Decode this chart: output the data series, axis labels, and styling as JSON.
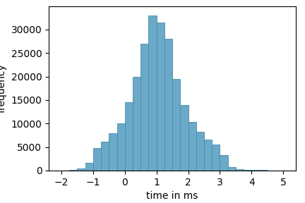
{
  "xlabel": "time in ms",
  "ylabel": "frequency",
  "bar_color": "#6aaac8",
  "bar_edgecolor": "#4a8aaa",
  "bin_edges": [
    -1.75,
    -1.5,
    -1.25,
    -1.0,
    -0.75,
    -0.5,
    -0.25,
    0.0,
    0.25,
    0.5,
    0.75,
    1.0,
    1.25,
    1.5,
    1.75,
    2.0,
    2.25,
    2.5,
    2.75,
    3.0,
    3.25,
    3.5,
    3.75,
    4.0,
    4.25,
    4.5,
    4.75,
    5.0
  ],
  "bar_heights": [
    200,
    400,
    1700,
    4800,
    6200,
    7900,
    10000,
    14500,
    20000,
    27000,
    33000,
    31500,
    28000,
    19500,
    14000,
    10300,
    8200,
    6600,
    5600,
    3300,
    800,
    300,
    200,
    100,
    100,
    50,
    50
  ],
  "xticks": [
    -2,
    -1,
    0,
    1,
    2,
    3,
    4,
    5
  ],
  "yticks": [
    0,
    5000,
    10000,
    15000,
    20000,
    25000,
    30000
  ],
  "xlim": [
    -2.4,
    5.4
  ],
  "ylim": [
    0,
    35000
  ]
}
